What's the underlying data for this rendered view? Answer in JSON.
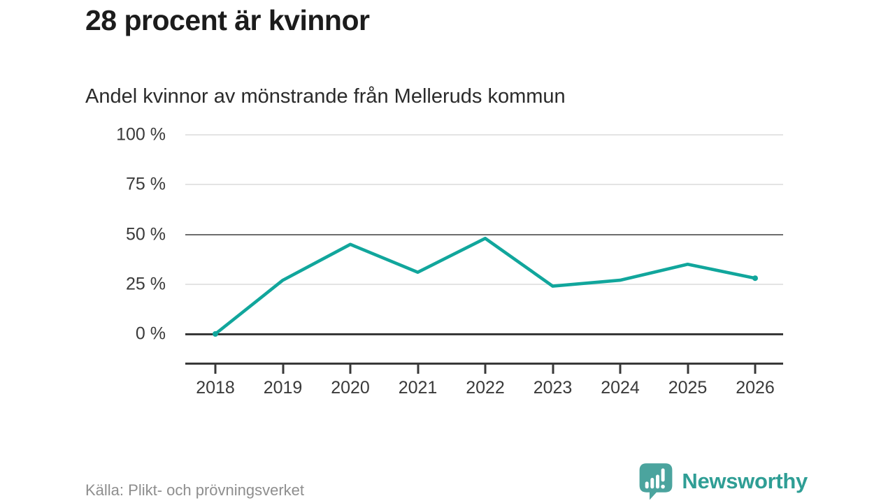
{
  "header": {
    "title": "28 procent är kvinnor",
    "subtitle": "Andel kvinnor av mönstrande från Melleruds kommun"
  },
  "chart_data": {
    "type": "line",
    "title": "28 procent är kvinnor",
    "subtitle": "Andel kvinnor av mönstrande från Melleruds kommun",
    "x": [
      2018,
      2019,
      2020,
      2021,
      2022,
      2023,
      2024,
      2025,
      2026
    ],
    "values": [
      0,
      27,
      45,
      31,
      48,
      24,
      27,
      35,
      28
    ],
    "series_name": "Andel kvinnor av mönstrande",
    "unit": "%",
    "ylim": [
      0,
      100
    ],
    "y_ticks": [
      0,
      25,
      50,
      75,
      100
    ],
    "y_tick_labels": [
      "0 %",
      "25 %",
      "50 %",
      "75 %",
      "100 %"
    ],
    "emphasized_gridlines": [
      0,
      50
    ],
    "grid": "horizontal",
    "legend_position": "none",
    "line_color": "#11a69c"
  },
  "footer": {
    "source": "Källa: Plikt- och prövningsverket",
    "brand": "Newsworthy",
    "brand_color": "#2f9e95",
    "logo_icon_color": "#4ba49e"
  }
}
